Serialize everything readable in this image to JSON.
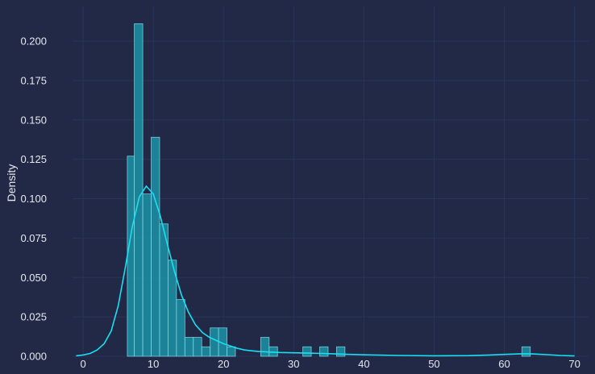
{
  "chart_data": {
    "type": "histogram",
    "ylabel": "Density",
    "xlabel": "",
    "xlim": [
      -1.5,
      72
    ],
    "ylim": [
      0,
      0.222
    ],
    "x_ticks": [
      0,
      10,
      20,
      30,
      40,
      50,
      60,
      70
    ],
    "y_ticks": [
      0.0,
      0.025,
      0.05,
      0.075,
      0.1,
      0.125,
      0.15,
      0.175,
      0.2
    ],
    "y_tick_labels": [
      "0.000",
      "0.025",
      "0.050",
      "0.075",
      "0.100",
      "0.125",
      "0.150",
      "0.175",
      "0.200"
    ],
    "grid": true,
    "colors": {
      "background": "#212946",
      "grid": "#2A3459",
      "bar_fill": "#1a9bb0",
      "bar_edge": "#7fd8e3",
      "kde_line": "#18e0f2",
      "text": "#e6e8f0"
    },
    "bins": [
      {
        "x0": 6.3,
        "x1": 7.3,
        "density": 0.127
      },
      {
        "x0": 7.3,
        "x1": 8.5,
        "density": 0.211
      },
      {
        "x0": 8.5,
        "x1": 9.7,
        "density": 0.103
      },
      {
        "x0": 9.7,
        "x1": 10.9,
        "density": 0.139
      },
      {
        "x0": 10.9,
        "x1": 12.1,
        "density": 0.084
      },
      {
        "x0": 12.1,
        "x1": 13.3,
        "density": 0.061
      },
      {
        "x0": 13.3,
        "x1": 14.5,
        "density": 0.036
      },
      {
        "x0": 14.5,
        "x1": 15.7,
        "density": 0.012
      },
      {
        "x0": 15.7,
        "x1": 16.9,
        "density": 0.012
      },
      {
        "x0": 16.9,
        "x1": 18.1,
        "density": 0.006
      },
      {
        "x0": 18.1,
        "x1": 19.3,
        "density": 0.018
      },
      {
        "x0": 19.3,
        "x1": 20.5,
        "density": 0.018
      },
      {
        "x0": 20.5,
        "x1": 21.7,
        "density": 0.006
      },
      {
        "x0": 25.3,
        "x1": 26.5,
        "density": 0.012
      },
      {
        "x0": 26.5,
        "x1": 27.7,
        "density": 0.006
      },
      {
        "x0": 31.3,
        "x1": 32.5,
        "density": 0.006
      },
      {
        "x0": 33.7,
        "x1": 34.9,
        "density": 0.006
      },
      {
        "x0": 36.1,
        "x1": 37.3,
        "density": 0.006
      },
      {
        "x0": 62.5,
        "x1": 63.7,
        "density": 0.006
      }
    ],
    "kde": {
      "x": [
        -1,
        0,
        1,
        2,
        3,
        4,
        5,
        6,
        7,
        8,
        9,
        10,
        11,
        12,
        13,
        14,
        15,
        16,
        17,
        18,
        19,
        20,
        21,
        22,
        23,
        24,
        25,
        26,
        27,
        28,
        30,
        32,
        34,
        36,
        38,
        40,
        45,
        50,
        55,
        58,
        60,
        62,
        63,
        64,
        66,
        68,
        70
      ],
      "y": [
        0.0003,
        0.0008,
        0.0018,
        0.004,
        0.008,
        0.016,
        0.032,
        0.056,
        0.082,
        0.101,
        0.108,
        0.103,
        0.089,
        0.071,
        0.054,
        0.039,
        0.028,
        0.02,
        0.015,
        0.012,
        0.01,
        0.008,
        0.0065,
        0.005,
        0.004,
        0.0035,
        0.003,
        0.0028,
        0.0026,
        0.0024,
        0.0022,
        0.002,
        0.0018,
        0.0015,
        0.0012,
        0.0009,
        0.0005,
        0.0003,
        0.0004,
        0.0008,
        0.0012,
        0.0015,
        0.0016,
        0.0015,
        0.001,
        0.0005,
        0.0002
      ]
    }
  }
}
